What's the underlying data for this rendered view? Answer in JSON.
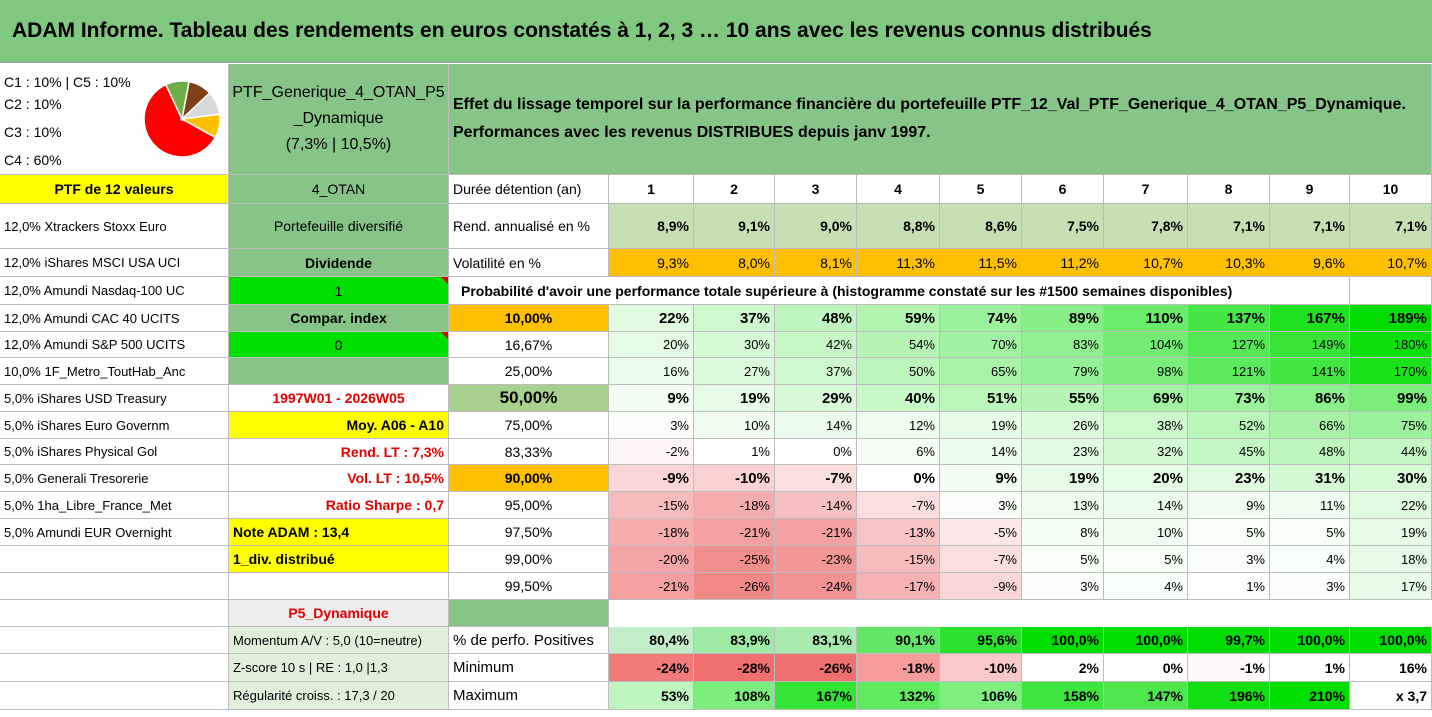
{
  "title": "ADAM Informe. Tableau des rendements en euros constatés à 1, 2, 3 … 10 ans avec les revenus connus distribués",
  "allocation": [
    "C1 : 10% | C5 : 10%",
    "C2 : 10%",
    "C3 : 10%",
    "C4 : 60%"
  ],
  "pie": [
    {
      "label": "C4",
      "value": 60,
      "color": "#ff0000"
    },
    {
      "label": "C3",
      "value": 10,
      "color": "#70ad47"
    },
    {
      "label": "C2",
      "value": 10,
      "color": "#7f3f17"
    },
    {
      "label": "C1",
      "value": 10,
      "color": "#d9d9d9"
    },
    {
      "label": "C5",
      "value": 10,
      "color": "#ffc000"
    }
  ],
  "portfolio": {
    "name_l1": "PTF_Generique_4_OTAN_P5",
    "name_l2": "_Dynamique",
    "name_l3": "(7,3% | 10,5%)",
    "desc_l1": "Effet du lissage temporel sur la performance financière du portefeuille PTF_12_Val_PTF_Generique_4_OTAN_P5_Dynamique.",
    "desc_l2": "Performances avec les revenus DISTRIBUES depuis janv 1997."
  },
  "ptf_label": "PTF de 12 valeurs",
  "holdings": [
    "12,0% Xtrackers Stoxx Euro",
    "12,0% iShares MSCI USA UCI",
    "12,0% Amundi Nasdaq-100 UC",
    "12,0% Amundi CAC 40 UCITS",
    "12,0% Amundi S&P 500 UCITS",
    "10,0% 1F_Metro_ToutHab_Anc",
    "5,0% iShares USD Treasury",
    "5,0% iShares Euro Governm",
    "5,0% iShares Physical Gol",
    "5,0% Generali Tresorerie",
    "5,0% 1ha_Libre_France_Met",
    "5,0% Amundi EUR Overnight"
  ],
  "info": {
    "code": "4_OTAN",
    "diversified": "Portefeuille diversifié",
    "dividend": "Dividende",
    "one": "1",
    "compar": "Compar. index",
    "zero": "0",
    "period": "1997W01 - 2026W05",
    "moy": "Moy. A06 - A10",
    "rend": "Rend. LT : 7,3%",
    "vol": "Vol. LT : 10,5%",
    "sharpe": "Ratio Sharpe : 0,7",
    "note": "Note ADAM : 13,4",
    "div": "1_div. distribué",
    "profile": "P5_Dynamique",
    "momentum": "Momentum A/V : 5,0 (10=neutre)",
    "zscore": "Z-score 10 s | RE : 1,0 |1,3",
    "regularity": "Régularité croiss. : 17,3 / 20"
  },
  "table": {
    "duration_label": "Durée détention (an)",
    "years": [
      "1",
      "2",
      "3",
      "4",
      "5",
      "6",
      "7",
      "8",
      "9",
      "10"
    ],
    "rend_label": "Rend. annualisé en %",
    "rend": [
      "8,9%",
      "9,1%",
      "9,0%",
      "8,8%",
      "8,6%",
      "7,5%",
      "7,8%",
      "7,1%",
      "7,1%",
      "7,1%"
    ],
    "vol_label": "Volatilité en %",
    "vol": [
      "9,3%",
      "8,0%",
      "8,1%",
      "11,3%",
      "11,5%",
      "11,2%",
      "10,7%",
      "10,3%",
      "9,6%",
      "10,7%"
    ],
    "prob_header": "Probabilité d'avoir une performance totale supérieure à (histogramme constaté sur les #1500 semaines disponibles)",
    "prob_rows": [
      {
        "p": "10,00%",
        "v": [
          "22%",
          "37%",
          "48%",
          "59%",
          "74%",
          "89%",
          "110%",
          "137%",
          "167%",
          "189%"
        ]
      },
      {
        "p": "16,67%",
        "v": [
          "20%",
          "30%",
          "42%",
          "54%",
          "70%",
          "83%",
          "104%",
          "127%",
          "149%",
          "180%"
        ]
      },
      {
        "p": "25,00%",
        "v": [
          "16%",
          "27%",
          "37%",
          "50%",
          "65%",
          "79%",
          "98%",
          "121%",
          "141%",
          "170%"
        ]
      },
      {
        "p": "50,00%",
        "v": [
          "9%",
          "19%",
          "29%",
          "40%",
          "51%",
          "55%",
          "69%",
          "73%",
          "86%",
          "99%"
        ]
      },
      {
        "p": "75,00%",
        "v": [
          "3%",
          "10%",
          "14%",
          "12%",
          "19%",
          "26%",
          "38%",
          "52%",
          "66%",
          "75%"
        ]
      },
      {
        "p": "83,33%",
        "v": [
          "-2%",
          "1%",
          "0%",
          "6%",
          "14%",
          "23%",
          "32%",
          "45%",
          "48%",
          "44%"
        ]
      },
      {
        "p": "90,00%",
        "v": [
          "-9%",
          "-10%",
          "-7%",
          "0%",
          "9%",
          "19%",
          "20%",
          "23%",
          "31%",
          "30%"
        ]
      },
      {
        "p": "95,00%",
        "v": [
          "-15%",
          "-18%",
          "-14%",
          "-7%",
          "3%",
          "13%",
          "14%",
          "9%",
          "11%",
          "22%"
        ]
      },
      {
        "p": "97,50%",
        "v": [
          "-18%",
          "-21%",
          "-21%",
          "-13%",
          "-5%",
          "8%",
          "10%",
          "5%",
          "5%",
          "19%"
        ]
      },
      {
        "p": "99,00%",
        "v": [
          "-20%",
          "-25%",
          "-23%",
          "-15%",
          "-7%",
          "5%",
          "5%",
          "3%",
          "4%",
          "18%"
        ]
      },
      {
        "p": "99,50%",
        "v": [
          "-21%",
          "-26%",
          "-24%",
          "-17%",
          "-9%",
          "3%",
          "4%",
          "1%",
          "3%",
          "17%"
        ]
      }
    ],
    "pos_label": "% de perfo. Positives",
    "pos": [
      "80,4%",
      "83,9%",
      "83,1%",
      "90,1%",
      "95,6%",
      "100,0%",
      "100,0%",
      "99,7%",
      "100,0%",
      "100,0%"
    ],
    "min_label": "Minimum",
    "min": [
      "-24%",
      "-28%",
      "-26%",
      "-18%",
      "-10%",
      "2%",
      "0%",
      "-1%",
      "1%",
      "16%"
    ],
    "max_label": "Maximum",
    "max": [
      "53%",
      "108%",
      "167%",
      "132%",
      "106%",
      "158%",
      "147%",
      "196%",
      "210%",
      "x 3,7"
    ]
  },
  "colors": {
    "header_green": "#80c77f",
    "strong_green": "#00e000",
    "yellow": "#ffff00",
    "orange": "#ffc000",
    "red_text": "#e00000"
  }
}
